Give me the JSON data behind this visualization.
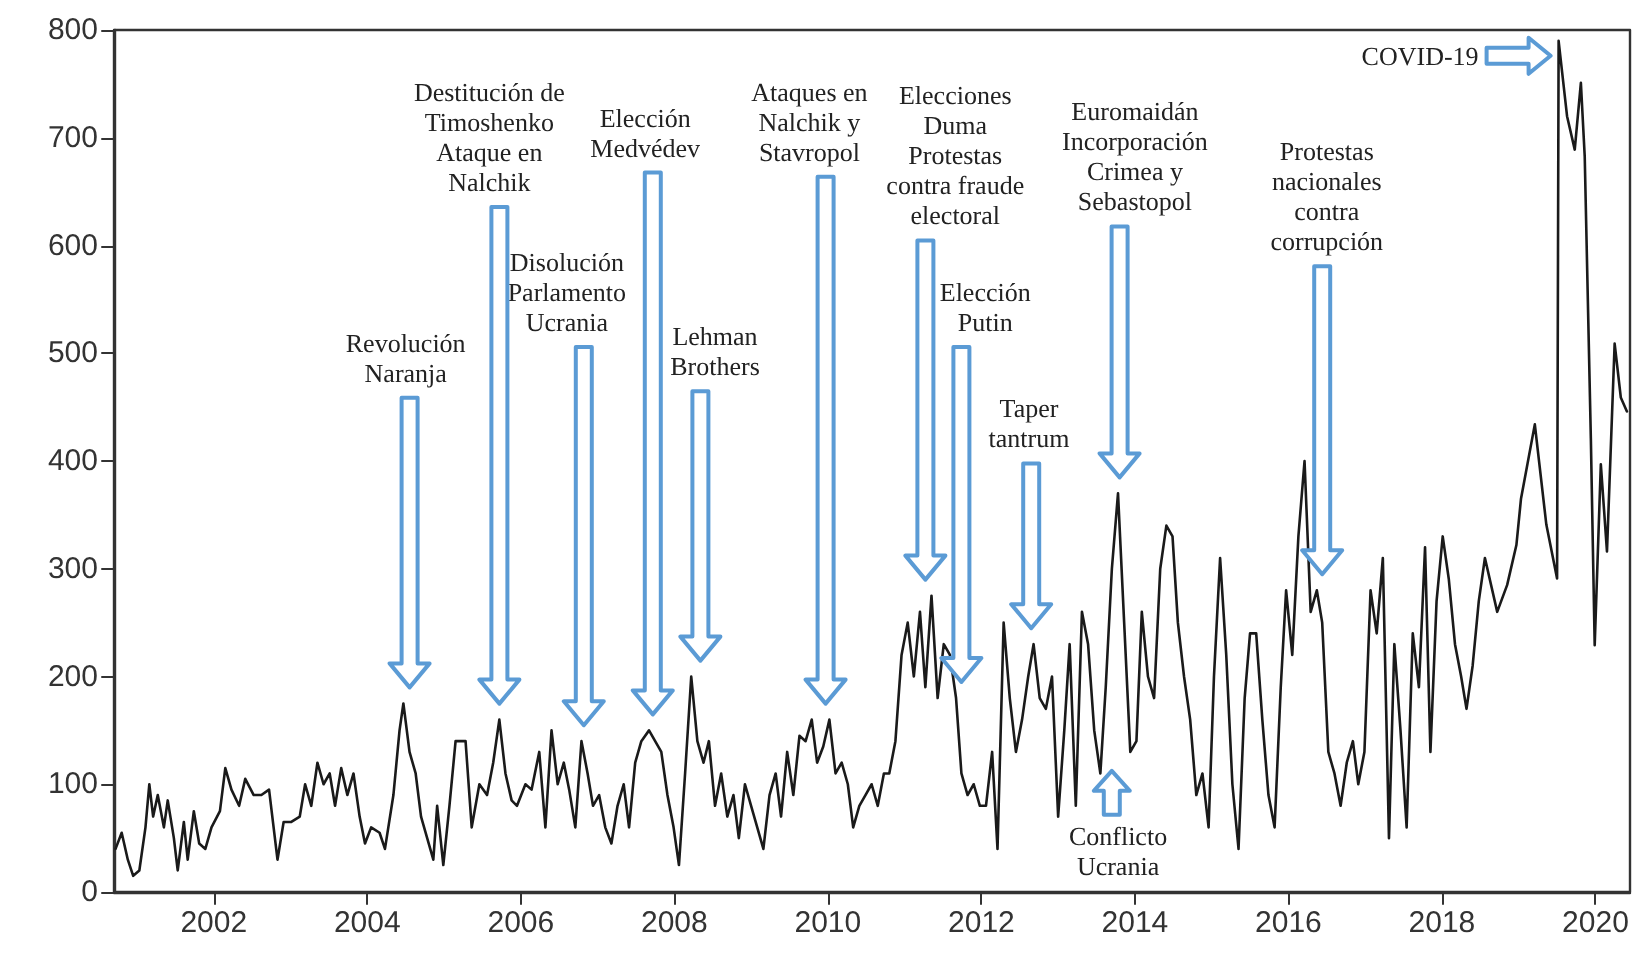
{
  "chart_data": {
    "type": "line",
    "xlim": [
      2000.7,
      2020.45
    ],
    "xticks": [
      2002,
      2004,
      2006,
      2008,
      2010,
      2012,
      2014,
      2016,
      2018,
      2020
    ],
    "ylim": [
      0,
      800
    ],
    "yticks": [
      0,
      100,
      200,
      300,
      400,
      500,
      600,
      700,
      800
    ],
    "grid": false,
    "marker": "none",
    "line_style": "solid",
    "series": [
      {
        "color": "#1a1a1a",
        "x": [
          2000.72,
          2000.8,
          2000.88,
          2000.95,
          2001.03,
          2001.11,
          2001.16,
          2001.21,
          2001.27,
          2001.35,
          2001.4,
          2001.48,
          2001.53,
          2001.61,
          2001.66,
          2001.74,
          2001.81,
          2001.89,
          2001.97,
          2002.08,
          2002.15,
          2002.23,
          2002.33,
          2002.41,
          2002.52,
          2002.62,
          2002.72,
          2002.83,
          2002.91,
          2003.01,
          2003.12,
          2003.19,
          2003.27,
          2003.35,
          2003.43,
          2003.51,
          2003.58,
          2003.66,
          2003.74,
          2003.82,
          2003.9,
          2003.97,
          2004.05,
          2004.16,
          2004.23,
          2004.34,
          2004.42,
          2004.47,
          2004.55,
          2004.63,
          2004.7,
          2004.78,
          2004.86,
          2004.91,
          2004.99,
          2005.07,
          2005.15,
          2005.28,
          2005.36,
          2005.46,
          2005.56,
          2005.64,
          2005.72,
          2005.8,
          2005.88,
          2005.95,
          2006.06,
          2006.14,
          2006.24,
          2006.32,
          2006.4,
          2006.48,
          2006.56,
          2006.63,
          2006.71,
          2006.79,
          2006.87,
          2006.94,
          2007.02,
          2007.1,
          2007.18,
          2007.26,
          2007.34,
          2007.41,
          2007.49,
          2007.57,
          2007.67,
          2007.75,
          2007.83,
          2007.91,
          2007.99,
          2008.06,
          2008.14,
          2008.22,
          2008.3,
          2008.38,
          2008.45,
          2008.53,
          2008.61,
          2008.69,
          2008.77,
          2008.84,
          2008.92,
          2009.0,
          2009.08,
          2009.16,
          2009.24,
          2009.32,
          2009.39,
          2009.47,
          2009.55,
          2009.63,
          2009.71,
          2009.79,
          2009.86,
          2009.94,
          2010.02,
          2010.1,
          2010.18,
          2010.26,
          2010.33,
          2010.41,
          2010.49,
          2010.57,
          2010.65,
          2010.73,
          2010.8,
          2010.88,
          2010.96,
          2011.04,
          2011.12,
          2011.2,
          2011.27,
          2011.35,
          2011.43,
          2011.51,
          2011.59,
          2011.67,
          2011.74,
          2011.82,
          2011.9,
          2011.98,
          2012.06,
          2012.14,
          2012.21,
          2012.29,
          2012.37,
          2012.45,
          2012.53,
          2012.61,
          2012.68,
          2012.76,
          2012.84,
          2012.92,
          2013.0,
          2013.08,
          2013.15,
          2013.23,
          2013.31,
          2013.39,
          2013.47,
          2013.55,
          2013.62,
          2013.7,
          2013.78,
          2013.86,
          2013.94,
          2014.02,
          2014.09,
          2014.17,
          2014.25,
          2014.33,
          2014.41,
          2014.49,
          2014.56,
          2014.64,
          2014.72,
          2014.8,
          2014.88,
          2014.96,
          2015.03,
          2015.11,
          2015.19,
          2015.27,
          2015.35,
          2015.43,
          2015.5,
          2015.58,
          2015.66,
          2015.74,
          2015.82,
          2015.9,
          2015.97,
          2016.05,
          2016.13,
          2016.21,
          2016.29,
          2016.37,
          2016.44,
          2016.52,
          2016.6,
          2016.68,
          2016.76,
          2016.84,
          2016.91,
          2016.99,
          2017.07,
          2017.15,
          2017.23,
          2017.31,
          2017.38,
          2017.46,
          2017.54,
          2017.62,
          2017.7,
          2017.78,
          2017.85,
          2017.93,
          2018.01,
          2018.09,
          2018.17,
          2018.25,
          2018.32,
          2018.4,
          2018.48,
          2018.56,
          2018.72,
          2018.85,
          2018.97,
          2019.03,
          2019.21,
          2019.36,
          2019.5,
          2019.52,
          2019.63,
          2019.73,
          2019.81,
          2019.86,
          2019.94,
          2019.99,
          2020.07,
          2020.15,
          2020.25,
          2020.33,
          2020.41
        ],
        "values": [
          40,
          55,
          30,
          15,
          20,
          60,
          100,
          70,
          90,
          60,
          85,
          50,
          20,
          65,
          30,
          75,
          45,
          40,
          60,
          75,
          115,
          95,
          80,
          105,
          90,
          90,
          95,
          30,
          65,
          65,
          70,
          100,
          80,
          120,
          100,
          110,
          80,
          115,
          90,
          110,
          70,
          45,
          60,
          55,
          40,
          90,
          150,
          175,
          130,
          110,
          70,
          50,
          30,
          80,
          25,
          80,
          140,
          140,
          60,
          100,
          90,
          120,
          160,
          110,
          85,
          80,
          100,
          95,
          130,
          60,
          150,
          100,
          120,
          95,
          60,
          140,
          110,
          80,
          90,
          60,
          45,
          80,
          100,
          60,
          120,
          140,
          150,
          140,
          130,
          90,
          60,
          25,
          110,
          200,
          140,
          120,
          140,
          80,
          110,
          70,
          90,
          50,
          100,
          80,
          60,
          40,
          90,
          110,
          70,
          130,
          90,
          145,
          140,
          160,
          120,
          135,
          160,
          110,
          120,
          100,
          60,
          80,
          90,
          100,
          80,
          110,
          110,
          140,
          220,
          250,
          200,
          260,
          190,
          275,
          180,
          230,
          220,
          180,
          110,
          90,
          100,
          80,
          80,
          130,
          40,
          250,
          180,
          130,
          160,
          200,
          230,
          180,
          170,
          200,
          70,
          150,
          230,
          80,
          260,
          230,
          150,
          110,
          190,
          300,
          370,
          250,
          130,
          140,
          260,
          200,
          180,
          300,
          340,
          330,
          250,
          200,
          160,
          90,
          110,
          60,
          200,
          310,
          220,
          100,
          40,
          180,
          240,
          240,
          160,
          90,
          60,
          190,
          280,
          220,
          330,
          400,
          260,
          280,
          250,
          130,
          110,
          80,
          120,
          140,
          100,
          130,
          280,
          240,
          310,
          50,
          230,
          150,
          60,
          240,
          190,
          320,
          130,
          270,
          330,
          290,
          230,
          200,
          170,
          210,
          270,
          310,
          260,
          285,
          322,
          365,
          434,
          341,
          291,
          790,
          720,
          689,
          751,
          683,
          421,
          229,
          397,
          316,
          509,
          459,
          446
        ]
      }
    ],
    "annotations": [
      "Revolución\nNaranja",
      "Destitución de\nTimoshenko\nAtaque en\nNalchik",
      "Disolución\nParlamento\nUcrania",
      "Elección\nMedvédev",
      "Lehman\nBrothers",
      "Ataques en\nNalchik y\nStavropol",
      "Elecciones\nDuma\nProtestas\ncontra fraude\nelectoral",
      "Elección\nPutin",
      "Taper\ntantrum",
      "Conflicto\nUcrania",
      "Euromaidán\nIncorporación\nCrimea y\nSebastopol",
      "Protestas\nnacionales\ncontra\ncorrupción",
      "COVID-19"
    ]
  }
}
